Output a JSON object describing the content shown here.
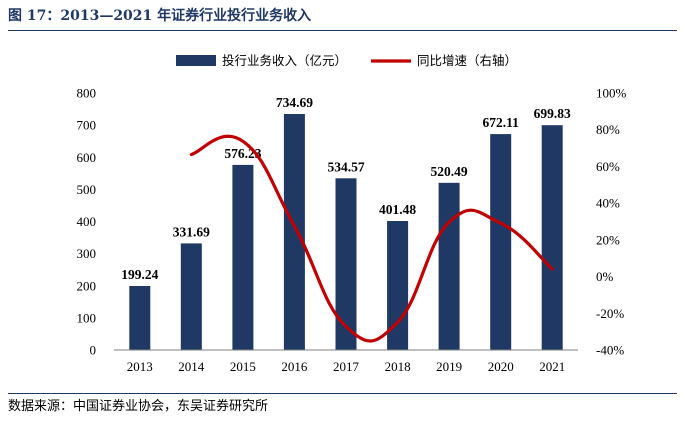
{
  "figure": {
    "title": "图 17：2013—2021 年证券行业投行业务收入",
    "source": "数据来源：中国证券业协会，东吴证券研究所"
  },
  "chart_data": {
    "type": "bar",
    "categories": [
      "2013",
      "2014",
      "2015",
      "2016",
      "2017",
      "2018",
      "2019",
      "2020",
      "2021"
    ],
    "series": [
      {
        "name": "投行业务收入（亿元）",
        "type": "bar",
        "axis": "left",
        "color": "#1f3864",
        "values": [
          199.24,
          331.69,
          576.23,
          734.69,
          534.57,
          401.48,
          520.49,
          672.11,
          699.83
        ],
        "labels": [
          "199.24",
          "331.69",
          "576.23",
          "734.69",
          "534.57",
          "401.48",
          "520.49",
          "672.11",
          "699.83"
        ]
      },
      {
        "name": "同比增速（右轴）",
        "type": "line",
        "axis": "right",
        "color": "#c00000",
        "smooth": true,
        "values": [
          null,
          66.5,
          73.7,
          27.5,
          -27.2,
          -24.9,
          29.6,
          29.1,
          4.1
        ]
      }
    ],
    "yleft": {
      "lim": [
        0,
        800
      ],
      "ticks": [
        0,
        100,
        200,
        300,
        400,
        500,
        600,
        700,
        800
      ],
      "tick_labels": [
        "0",
        "100",
        "200",
        "300",
        "400",
        "500",
        "600",
        "700",
        "800"
      ]
    },
    "yright": {
      "lim": [
        -40,
        100
      ],
      "ticks": [
        -40,
        -20,
        0,
        20,
        40,
        60,
        80,
        100
      ],
      "tick_labels": [
        "-40%",
        "-20%",
        "0%",
        "20%",
        "40%",
        "60%",
        "80%",
        "100%"
      ]
    },
    "legend": "top",
    "grid": false
  }
}
